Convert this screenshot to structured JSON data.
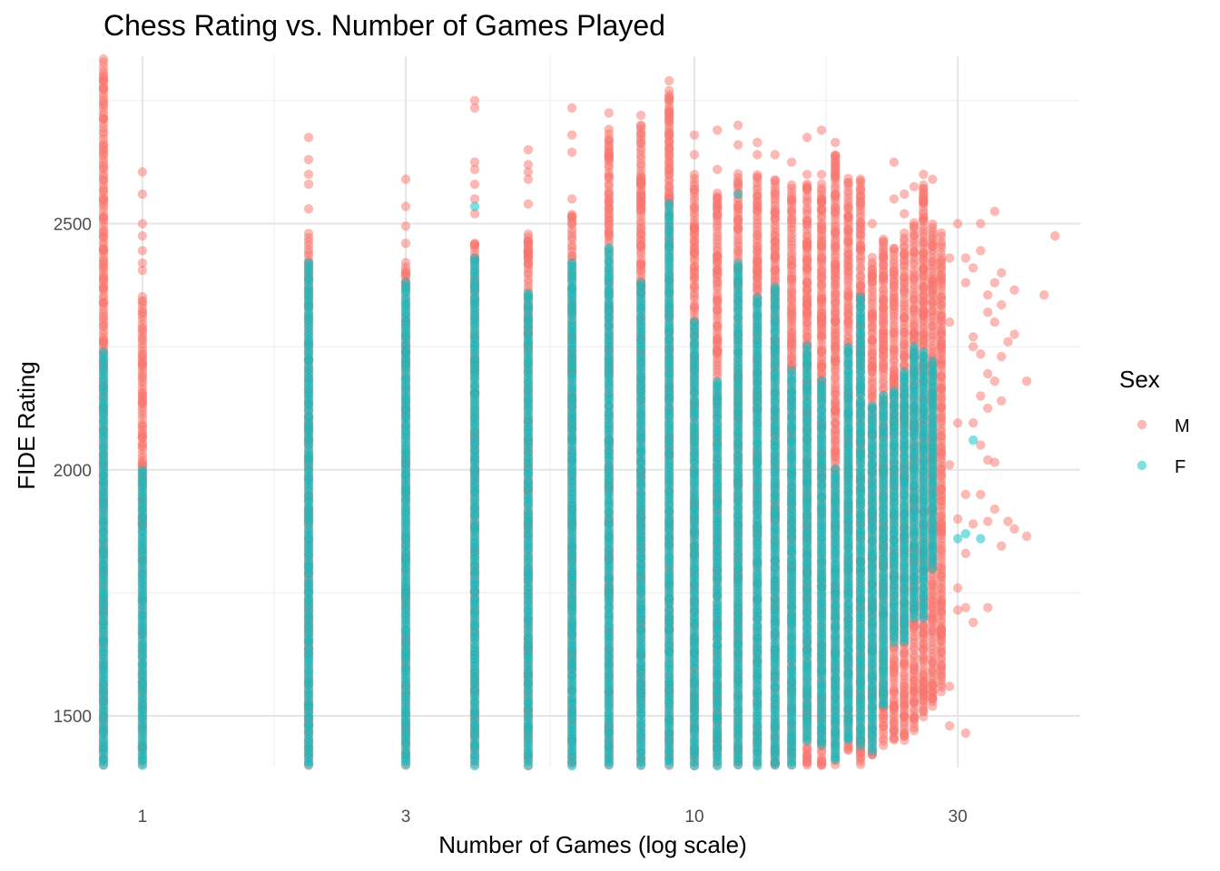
{
  "chart_data": {
    "type": "scatter",
    "title": "Chess Rating vs. Number of Games Played",
    "xlabel": "Number of Games (log scale)",
    "ylabel": "FIDE Rating",
    "x_scale": "log10",
    "xlim": [
      0.85,
      50
    ],
    "ylim": [
      1395,
      2840
    ],
    "x_ticks": [
      1,
      3,
      10,
      30
    ],
    "x_tick_labels": [
      "1",
      "3",
      "10",
      "30"
    ],
    "y_ticks": [
      1500,
      2000,
      2500
    ],
    "y_tick_labels": [
      "1500",
      "2000",
      "2500"
    ],
    "grid": true,
    "legend": {
      "title": "Sex",
      "position": "right",
      "entries": [
        {
          "label": "M",
          "color": "#F8766D"
        },
        {
          "label": "F",
          "color": "#00BFC4"
        }
      ]
    },
    "series": [
      {
        "name": "M",
        "color": "#F8766D",
        "columns": [
          {
            "x": 0.85,
            "y_min": 1400,
            "y_max": 2835,
            "outliers": []
          },
          {
            "x": 1,
            "y_min": 1400,
            "y_max": 2350,
            "outliers": [
              2405,
              2420,
              2445,
              2475,
              2500,
              2560,
              2605
            ]
          },
          {
            "x": 2,
            "y_min": 1400,
            "y_max": 2480,
            "outliers": [
              2530,
              2580,
              2600,
              2630,
              2675
            ]
          },
          {
            "x": 3,
            "y_min": 1400,
            "y_max": 2420,
            "outliers": [
              2460,
              2495,
              2535,
              2590
            ]
          },
          {
            "x": 4,
            "y_min": 1400,
            "y_max": 2460,
            "outliers": [
              2520,
              2550,
              2580,
              2610,
              2625,
              2735,
              2750
            ]
          },
          {
            "x": 5,
            "y_min": 1400,
            "y_max": 2480,
            "outliers": [
              2540,
              2590,
              2605,
              2620,
              2650
            ]
          },
          {
            "x": 6,
            "y_min": 1400,
            "y_max": 2520,
            "outliers": [
              2550,
              2645,
              2680,
              2735
            ]
          },
          {
            "x": 7,
            "y_min": 1400,
            "y_max": 2690,
            "outliers": [
              2725
            ]
          },
          {
            "x": 8,
            "y_min": 1400,
            "y_max": 2700,
            "outliers": [
              2720
            ]
          },
          {
            "x": 9,
            "y_min": 1400,
            "y_max": 2770,
            "outliers": [
              2790
            ]
          },
          {
            "x": 10,
            "y_min": 1400,
            "y_max": 2600,
            "outliers": [
              2640,
              2680
            ]
          },
          {
            "x": 11,
            "y_min": 1400,
            "y_max": 2560,
            "outliers": [
              2610,
              2690
            ]
          },
          {
            "x": 12,
            "y_min": 1400,
            "y_max": 2600,
            "outliers": [
              2660,
              2700
            ]
          },
          {
            "x": 13,
            "y_min": 1400,
            "y_max": 2600,
            "outliers": [
              2640,
              2665
            ]
          },
          {
            "x": 14,
            "y_min": 1400,
            "y_max": 2590,
            "outliers": [
              2640
            ]
          },
          {
            "x": 15,
            "y_min": 1400,
            "y_max": 2580,
            "outliers": [
              2625
            ]
          },
          {
            "x": 16,
            "y_min": 1400,
            "y_max": 2580,
            "outliers": [
              2600,
              2675
            ]
          },
          {
            "x": 17,
            "y_min": 1400,
            "y_max": 2580,
            "outliers": [
              2600,
              2690
            ]
          },
          {
            "x": 18,
            "y_min": 1400,
            "y_max": 2640,
            "outliers": [
              2665
            ]
          },
          {
            "x": 19,
            "y_min": 1430,
            "y_max": 2590,
            "outliers": []
          },
          {
            "x": 20,
            "y_min": 1400,
            "y_max": 2590,
            "outliers": []
          },
          {
            "x": 21,
            "y_min": 1420,
            "y_max": 2430,
            "outliers": [
              2500
            ]
          },
          {
            "x": 22,
            "y_min": 1440,
            "y_max": 2470,
            "outliers": []
          },
          {
            "x": 23,
            "y_min": 1450,
            "y_max": 2450,
            "outliers": [
              2550,
              2625
            ]
          },
          {
            "x": 24,
            "y_min": 1450,
            "y_max": 2480,
            "outliers": [
              2520,
              2560
            ]
          },
          {
            "x": 25,
            "y_min": 1470,
            "y_max": 2500,
            "outliers": [
              2575
            ]
          },
          {
            "x": 26,
            "y_min": 1500,
            "y_max": 2580,
            "outliers": [
              2600
            ]
          },
          {
            "x": 27,
            "y_min": 1520,
            "y_max": 2500,
            "outliers": [
              2590
            ]
          },
          {
            "x": 28,
            "y_min": 1550,
            "y_max": 2480,
            "outliers": []
          }
        ],
        "points": [
          [
            29,
            1480
          ],
          [
            29,
            1560
          ],
          [
            29,
            2010
          ],
          [
            29,
            2300
          ],
          [
            29,
            2430
          ],
          [
            30,
            1715
          ],
          [
            30,
            1760
          ],
          [
            30,
            1900
          ],
          [
            30,
            2095
          ],
          [
            30,
            2500
          ],
          [
            31,
            1465
          ],
          [
            31,
            1720
          ],
          [
            31,
            1830
          ],
          [
            31,
            1950
          ],
          [
            31,
            2380
          ],
          [
            31,
            2430
          ],
          [
            32,
            1690
          ],
          [
            32,
            1890
          ],
          [
            32,
            2095
          ],
          [
            32,
            2250
          ],
          [
            32,
            2270
          ],
          [
            32,
            2410
          ],
          [
            33,
            1950
          ],
          [
            33,
            2050
          ],
          [
            33,
            2150
          ],
          [
            33,
            2235
          ],
          [
            33,
            2445
          ],
          [
            33,
            2500
          ],
          [
            34,
            1720
          ],
          [
            34,
            1895
          ],
          [
            34,
            2020
          ],
          [
            34,
            2125
          ],
          [
            34,
            2195
          ],
          [
            34,
            2320
          ],
          [
            34,
            2355
          ],
          [
            35,
            1920
          ],
          [
            35,
            2015
          ],
          [
            35,
            2180
          ],
          [
            35,
            2300
          ],
          [
            35,
            2380
          ],
          [
            35,
            2525
          ],
          [
            36,
            1845
          ],
          [
            36,
            2140
          ],
          [
            36,
            2230
          ],
          [
            36,
            2335
          ],
          [
            36,
            2400
          ],
          [
            37,
            1895
          ],
          [
            37,
            2260
          ],
          [
            38,
            1880
          ],
          [
            38,
            2275
          ],
          [
            38,
            2365
          ],
          [
            40,
            1865
          ],
          [
            40,
            2180
          ],
          [
            43,
            2355
          ],
          [
            45,
            2475
          ]
        ]
      },
      {
        "name": "F",
        "color": "#00BFC4",
        "columns": [
          {
            "x": 0.85,
            "y_min": 1400,
            "y_max": 2240,
            "outliers": []
          },
          {
            "x": 1,
            "y_min": 1400,
            "y_max": 2000,
            "outliers": []
          },
          {
            "x": 2,
            "y_min": 1400,
            "y_max": 2420,
            "outliers": []
          },
          {
            "x": 3,
            "y_min": 1400,
            "y_max": 2380,
            "outliers": []
          },
          {
            "x": 4,
            "y_min": 1400,
            "y_max": 2430,
            "outliers": [
              2535
            ]
          },
          {
            "x": 5,
            "y_min": 1400,
            "y_max": 2360,
            "outliers": []
          },
          {
            "x": 6,
            "y_min": 1400,
            "y_max": 2420,
            "outliers": []
          },
          {
            "x": 7,
            "y_min": 1400,
            "y_max": 2450,
            "outliers": []
          },
          {
            "x": 8,
            "y_min": 1400,
            "y_max": 2380,
            "outliers": []
          },
          {
            "x": 9,
            "y_min": 1400,
            "y_max": 2540,
            "outliers": []
          },
          {
            "x": 10,
            "y_min": 1400,
            "y_max": 2300,
            "outliers": []
          },
          {
            "x": 11,
            "y_min": 1400,
            "y_max": 2180,
            "outliers": []
          },
          {
            "x": 12,
            "y_min": 1400,
            "y_max": 2420,
            "outliers": [
              2560
            ]
          },
          {
            "x": 13,
            "y_min": 1400,
            "y_max": 2350,
            "outliers": []
          },
          {
            "x": 14,
            "y_min": 1400,
            "y_max": 2370,
            "outliers": []
          },
          {
            "x": 15,
            "y_min": 1400,
            "y_max": 2200,
            "outliers": []
          },
          {
            "x": 16,
            "y_min": 1450,
            "y_max": 2250,
            "outliers": []
          },
          {
            "x": 17,
            "y_min": 1440,
            "y_max": 2180,
            "outliers": []
          },
          {
            "x": 18,
            "y_min": 1410,
            "y_max": 2000,
            "outliers": []
          },
          {
            "x": 19,
            "y_min": 1450,
            "y_max": 2250,
            "outliers": []
          },
          {
            "x": 20,
            "y_min": 1440,
            "y_max": 2350,
            "outliers": []
          },
          {
            "x": 21,
            "y_min": 1430,
            "y_max": 2130,
            "outliers": []
          },
          {
            "x": 22,
            "y_min": 1520,
            "y_max": 2150,
            "outliers": []
          },
          {
            "x": 23,
            "y_min": 1650,
            "y_max": 2160,
            "outliers": []
          },
          {
            "x": 24,
            "y_min": 1650,
            "y_max": 2200,
            "outliers": []
          },
          {
            "x": 25,
            "y_min": 1700,
            "y_max": 2250,
            "outliers": []
          },
          {
            "x": 26,
            "y_min": 1700,
            "y_max": 2240,
            "outliers": []
          },
          {
            "x": 27,
            "y_min": 1800,
            "y_max": 2220,
            "outliers": []
          }
        ],
        "points": [
          [
            30,
            1860
          ],
          [
            31,
            1870
          ],
          [
            32,
            2060
          ],
          [
            33,
            1860
          ]
        ]
      }
    ]
  }
}
